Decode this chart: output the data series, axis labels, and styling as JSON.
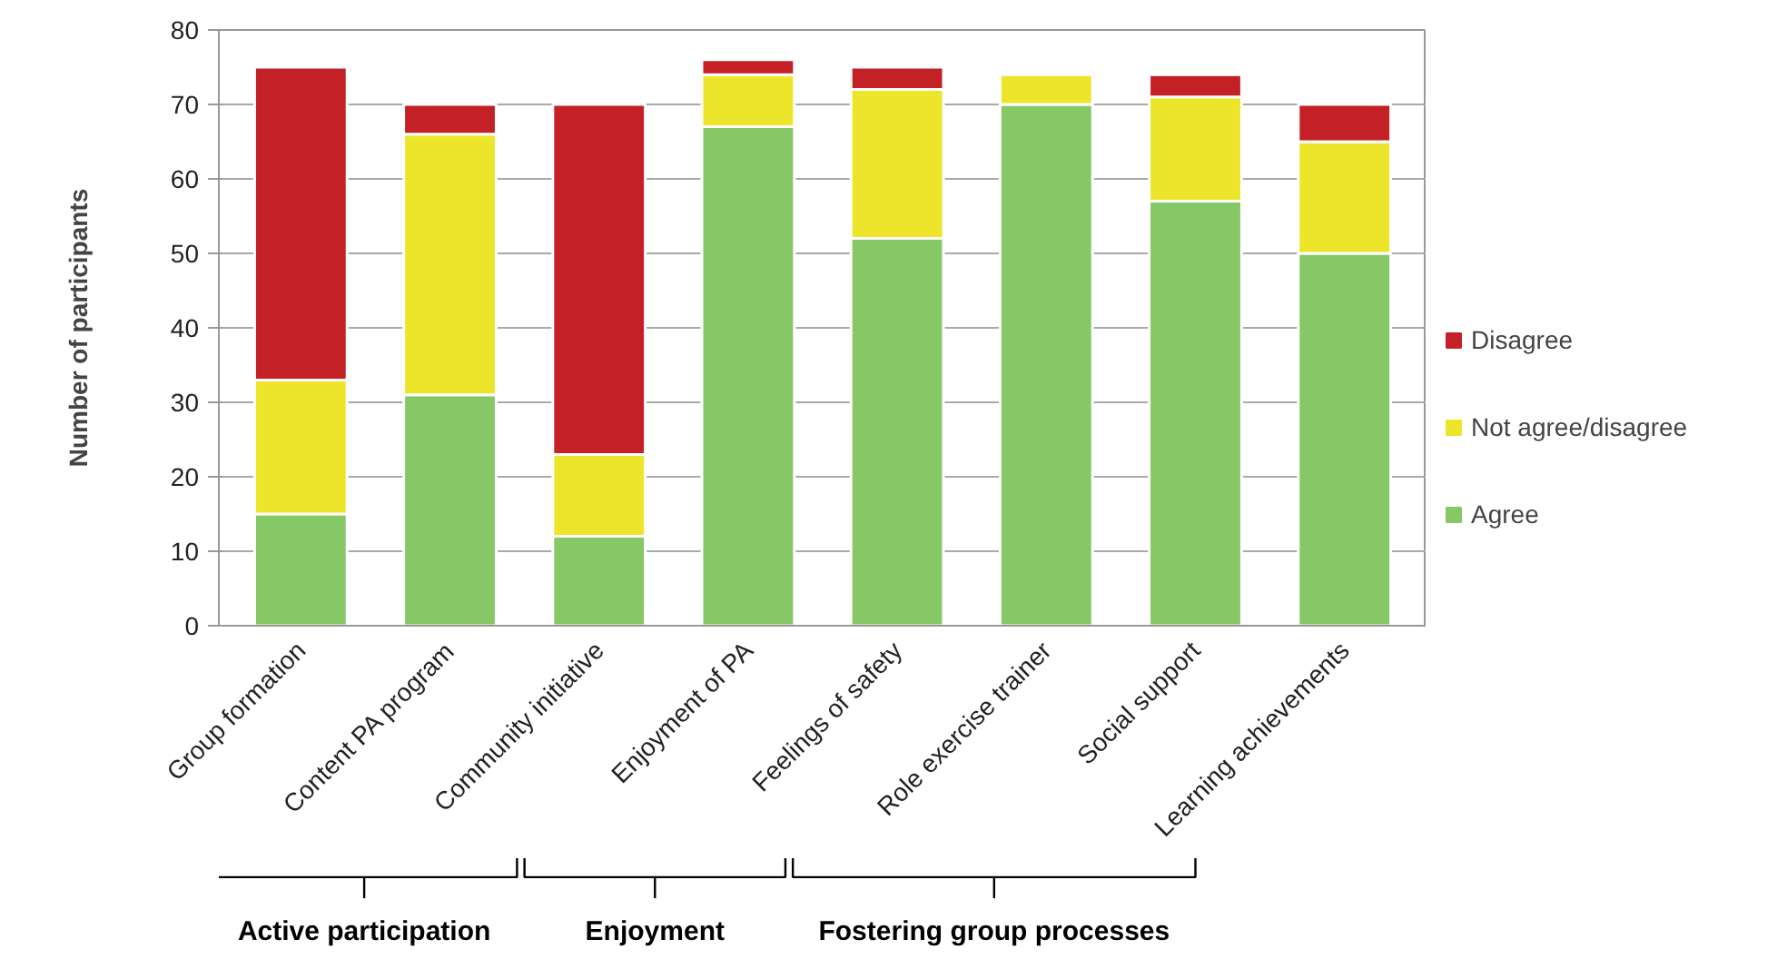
{
  "chart_data": {
    "type": "bar",
    "stacked": true,
    "ylabel": "Number of participants",
    "categories": [
      "Group formation",
      "Content PA program",
      "Community initiative",
      "Enjoyment of PA",
      "Feelings of safety",
      "Role exercise trainer",
      "Social support",
      "Learning achievements"
    ],
    "series": [
      {
        "name": "Agree",
        "color": "#86c766",
        "values": [
          15,
          31,
          12,
          67,
          52,
          70,
          57,
          50
        ]
      },
      {
        "name": "Not agree/disagree",
        "color": "#ede52a",
        "values": [
          18,
          35,
          11,
          7,
          20,
          4,
          14,
          15
        ]
      },
      {
        "name": "Disagree",
        "color": "#c32126",
        "values": [
          42,
          4,
          47,
          2,
          3,
          0,
          3,
          5
        ]
      }
    ],
    "ylim": [
      0,
      80
    ],
    "yticks": [
      0,
      10,
      20,
      30,
      40,
      50,
      60,
      70,
      80
    ],
    "grid": "y",
    "legend": "right",
    "annotations": [
      "Active participation",
      "Enjoyment",
      "Fostering group processes"
    ]
  }
}
